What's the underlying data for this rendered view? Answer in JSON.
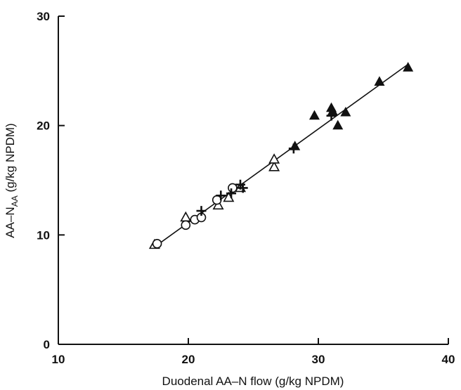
{
  "chart_data": {
    "type": "scatter",
    "title": "",
    "xlabel": "Duodenal AA–N flow (g/kg NPDM)",
    "ylabel_main": "AA–N",
    "ylabel_sub": "AA",
    "ylabel_rest": " (g/kg NPDM)",
    "xlim": [
      10,
      40
    ],
    "ylim": [
      0,
      30
    ],
    "xticks": [
      "10",
      "20",
      "30",
      "40"
    ],
    "yticks": [
      "0",
      "10",
      "20",
      "30"
    ],
    "grid": false,
    "series": [
      {
        "marker": "open-triangle",
        "points": [
          [
            17.4,
            9.1
          ],
          [
            19.8,
            11.6
          ],
          [
            22.3,
            12.7
          ],
          [
            23.1,
            13.4
          ],
          [
            24.0,
            14.3
          ],
          [
            26.6,
            16.2
          ],
          [
            26.6,
            16.9
          ]
        ]
      },
      {
        "marker": "open-circle",
        "points": [
          [
            17.6,
            9.2
          ],
          [
            19.8,
            10.9
          ],
          [
            20.5,
            11.4
          ],
          [
            21.0,
            11.6
          ],
          [
            22.2,
            13.2
          ],
          [
            23.4,
            14.3
          ]
        ]
      },
      {
        "marker": "plus",
        "points": [
          [
            21.0,
            12.2
          ],
          [
            22.5,
            13.6
          ],
          [
            23.3,
            13.8
          ],
          [
            24.0,
            14.6
          ],
          [
            24.2,
            14.3
          ],
          [
            28.1,
            17.9
          ],
          [
            31.0,
            20.9
          ]
        ]
      },
      {
        "marker": "filled-triangle",
        "points": [
          [
            28.2,
            18.1
          ],
          [
            29.7,
            20.9
          ],
          [
            31.0,
            21.6
          ],
          [
            31.1,
            21.3
          ],
          [
            31.5,
            20.0
          ],
          [
            32.1,
            21.2
          ],
          [
            34.7,
            24.0
          ],
          [
            36.9,
            25.3
          ]
        ]
      }
    ],
    "fit_line": {
      "x": [
        17.4,
        36.9
      ],
      "y": [
        8.9,
        25.6
      ]
    }
  }
}
